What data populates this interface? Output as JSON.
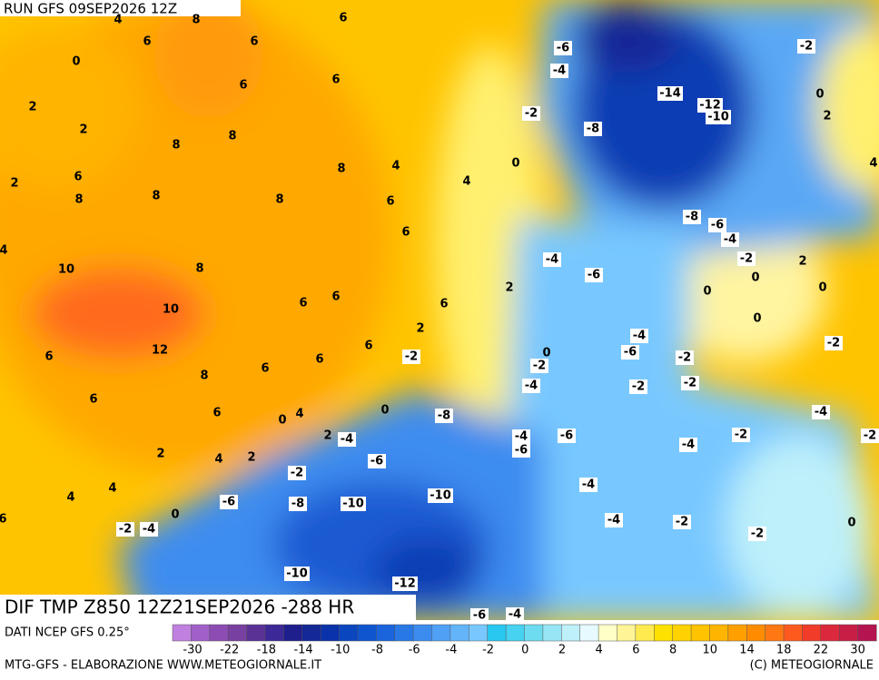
{
  "header": {
    "run": "RUN GFS 09SEP2026 12Z"
  },
  "banner": {
    "title": "DIF TMP Z850 12Z21SEP2026 -288 HR"
  },
  "footer": {
    "source": "DATI NCEP GFS 0.25°",
    "credit_left": "MTG-GFS - ELABORAZIONE WWW.METEOGIORNALE.IT",
    "credit_right": "(C) METEOGIORNALE"
  },
  "colorbar": {
    "colors": [
      "#c080e0",
      "#a060c8",
      "#8c4cb4",
      "#7840a0",
      "#5a3296",
      "#3c2896",
      "#1e1e8c",
      "#142896",
      "#0a32aa",
      "#0a46be",
      "#1055d0",
      "#1a64dc",
      "#2878e6",
      "#3c8cf0",
      "#50a0f5",
      "#64b4fa",
      "#78c8ff",
      "#28c8f0",
      "#46d2f0",
      "#6edcf0",
      "#96e6f5",
      "#bef0fa",
      "#e6faff",
      "#ffffc8",
      "#fff596",
      "#ffeb50",
      "#ffe100",
      "#ffd200",
      "#ffc300",
      "#ffb400",
      "#ffa000",
      "#ff8c00",
      "#ff7814",
      "#ff5a1e",
      "#f03c28",
      "#dc283c",
      "#c81e46",
      "#b41450"
    ],
    "labels": [
      -30,
      -22,
      -18,
      -14,
      -10,
      -8,
      -6,
      -4,
      -2,
      0,
      2,
      4,
      6,
      8,
      10,
      14,
      18,
      22,
      30
    ]
  },
  "map_labels": [
    4,
    8,
    6,
    6,
    6,
    0,
    6,
    6,
    2,
    2,
    8,
    8,
    2,
    6,
    8,
    8,
    8,
    4,
    8,
    4,
    6,
    6,
    4,
    8,
    10,
    6,
    6,
    10,
    6,
    2,
    12,
    6,
    6,
    6,
    6,
    8,
    6,
    6,
    0,
    4,
    0,
    2,
    2,
    4,
    2,
    4,
    4,
    0,
    6,
    0,
    2,
    -6,
    -4,
    -2,
    -8,
    -14,
    -12,
    -10,
    -2,
    0,
    2,
    4,
    -8,
    -6,
    -4,
    -2,
    2,
    0,
    0,
    0,
    0,
    -4,
    -6,
    -4,
    -6,
    -2,
    -2,
    -2,
    0,
    -2,
    -2,
    -4,
    -2,
    -4,
    -2,
    -8,
    -4,
    -6,
    -6,
    -4,
    -6,
    -2,
    -4,
    -2,
    -4,
    -6,
    -8,
    -10,
    -10,
    -4,
    -2,
    -2,
    0,
    -2,
    -4,
    -10,
    -12,
    -6,
    -4
  ]
}
